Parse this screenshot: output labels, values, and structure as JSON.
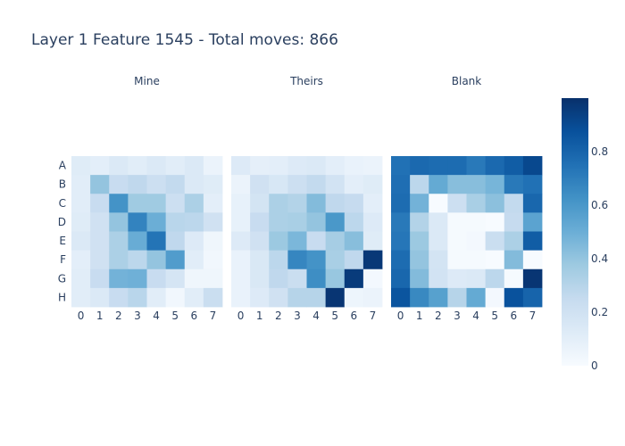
{
  "chart_data": {
    "type": "heatmap",
    "title": "Layer 1 Feature 1545 - Total moves: 866",
    "row_labels": [
      "A",
      "B",
      "C",
      "D",
      "E",
      "F",
      "G",
      "H"
    ],
    "col_labels": [
      "0",
      "1",
      "2",
      "3",
      "4",
      "5",
      "6",
      "7"
    ],
    "colorscale": "Blues",
    "zmin": 0,
    "zmax": 1,
    "colorbar": {
      "ticks": [
        0,
        0.2,
        0.4,
        0.6,
        0.8
      ],
      "tick_labels": [
        "0",
        "0.2",
        "0.4",
        "0.6",
        "0.8"
      ]
    },
    "panels": [
      {
        "title": "Mine",
        "values": [
          [
            0.12,
            0.1,
            0.14,
            0.11,
            0.14,
            0.11,
            0.14,
            0.06
          ],
          [
            0.11,
            0.4,
            0.24,
            0.27,
            0.22,
            0.26,
            0.14,
            0.12
          ],
          [
            0.11,
            0.24,
            0.62,
            0.37,
            0.37,
            0.22,
            0.33,
            0.1
          ],
          [
            0.12,
            0.2,
            0.4,
            0.68,
            0.5,
            0.29,
            0.28,
            0.2
          ],
          [
            0.14,
            0.2,
            0.33,
            0.51,
            0.74,
            0.27,
            0.13,
            0.04
          ],
          [
            0.1,
            0.2,
            0.33,
            0.28,
            0.4,
            0.58,
            0.11,
            0.03
          ],
          [
            0.11,
            0.24,
            0.48,
            0.49,
            0.24,
            0.17,
            0.04,
            0.04
          ],
          [
            0.11,
            0.14,
            0.24,
            0.29,
            0.11,
            0.03,
            0.11,
            0.23
          ]
        ]
      },
      {
        "title": "Theirs",
        "values": [
          [
            0.13,
            0.09,
            0.1,
            0.13,
            0.14,
            0.1,
            0.07,
            0.06
          ],
          [
            0.06,
            0.2,
            0.16,
            0.22,
            0.26,
            0.19,
            0.1,
            0.12
          ],
          [
            0.08,
            0.18,
            0.33,
            0.31,
            0.44,
            0.27,
            0.25,
            0.1
          ],
          [
            0.08,
            0.24,
            0.33,
            0.34,
            0.4,
            0.6,
            0.28,
            0.13
          ],
          [
            0.13,
            0.2,
            0.38,
            0.46,
            0.24,
            0.35,
            0.43,
            0.12
          ],
          [
            0.07,
            0.15,
            0.28,
            0.67,
            0.62,
            0.34,
            0.27,
            0.97
          ],
          [
            0.07,
            0.15,
            0.27,
            0.23,
            0.64,
            0.39,
            0.96,
            0.02
          ],
          [
            0.07,
            0.13,
            0.2,
            0.3,
            0.3,
            0.98,
            0.05,
            0.06
          ]
        ]
      },
      {
        "title": "Blank",
        "values": [
          [
            0.75,
            0.78,
            0.77,
            0.77,
            0.72,
            0.78,
            0.83,
            0.91
          ],
          [
            0.76,
            0.28,
            0.52,
            0.43,
            0.43,
            0.47,
            0.72,
            0.75
          ],
          [
            0.77,
            0.48,
            0.0,
            0.22,
            0.34,
            0.42,
            0.26,
            0.79
          ],
          [
            0.72,
            0.31,
            0.14,
            0.01,
            0.01,
            0.0,
            0.25,
            0.55
          ],
          [
            0.73,
            0.38,
            0.14,
            0.01,
            0.02,
            0.23,
            0.33,
            0.83
          ],
          [
            0.77,
            0.4,
            0.18,
            0.01,
            0.01,
            0.0,
            0.44,
            0.0
          ],
          [
            0.79,
            0.44,
            0.19,
            0.13,
            0.14,
            0.28,
            0.01,
            0.98
          ],
          [
            0.86,
            0.66,
            0.56,
            0.3,
            0.52,
            0.02,
            0.87,
            0.8
          ]
        ]
      }
    ]
  }
}
